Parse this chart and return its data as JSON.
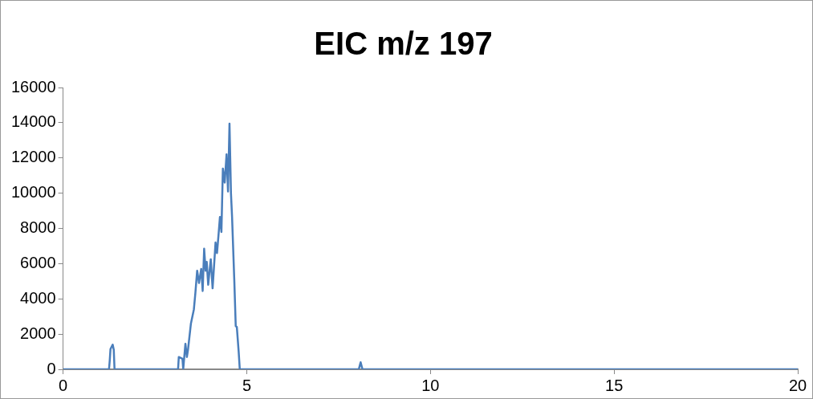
{
  "chart_data": {
    "type": "line",
    "title": "EIC m/z 197",
    "x": [
      0,
      1.25,
      1.27,
      1.29,
      1.35,
      1.38,
      1.4,
      3.1,
      3.13,
      3.15,
      3.25,
      3.27,
      3.33,
      3.37,
      3.4,
      3.48,
      3.56,
      3.6,
      3.65,
      3.7,
      3.76,
      3.8,
      3.84,
      3.88,
      3.91,
      3.95,
      4.02,
      4.07,
      4.12,
      4.15,
      4.19,
      4.23,
      4.27,
      4.31,
      4.35,
      4.4,
      4.45,
      4.49,
      4.53,
      4.57,
      4.6,
      4.66,
      4.7,
      4.73,
      4.78,
      4.81,
      8.05,
      8.1,
      8.15,
      20
    ],
    "series": [
      {
        "color": "#4a7ebb",
        "values": [
          0,
          0,
          500,
          1150,
          1400,
          1100,
          0,
          0,
          0,
          700,
          600,
          0,
          1450,
          700,
          1100,
          2600,
          3400,
          4300,
          5600,
          4900,
          5700,
          4450,
          6850,
          5600,
          6100,
          4800,
          6250,
          4600,
          6200,
          7200,
          6600,
          7600,
          8650,
          7800,
          11400,
          10600,
          12200,
          10100,
          13950,
          10000,
          8650,
          5100,
          2450,
          2400,
          1000,
          0,
          0,
          400,
          0,
          0
        ]
      }
    ],
    "xlim": [
      0,
      20
    ],
    "xticks": [
      0,
      5,
      10,
      15,
      20
    ],
    "ylim": [
      0,
      16000
    ],
    "yticks": [
      0,
      2000,
      4000,
      6000,
      8000,
      10000,
      12000,
      14000,
      16000
    ],
    "grid": false,
    "legend": false,
    "marker": "none",
    "line_style": "solid"
  }
}
